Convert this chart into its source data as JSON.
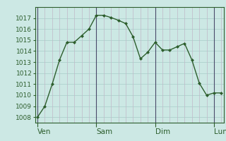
{
  "background_color": "#cce8e4",
  "plot_bg_color": "#cce8e4",
  "line_color": "#2d5e2d",
  "marker_color": "#2d5e2d",
  "vgrid_minor_color": "#c0b8c8",
  "hgrid_color": "#a8ccc8",
  "day_vline_color": "#4a4a6a",
  "ylim": [
    1007.5,
    1018.0
  ],
  "xlim": [
    -1,
    76
  ],
  "yticks": [
    1008,
    1009,
    1010,
    1011,
    1012,
    1013,
    1014,
    1015,
    1016,
    1017
  ],
  "day_labels": [
    "Ven",
    "Sam",
    "Dim",
    "Lun"
  ],
  "day_positions": [
    0,
    24,
    48,
    72
  ],
  "x_values": [
    0,
    3,
    6,
    9,
    12,
    15,
    18,
    21,
    24,
    27,
    30,
    33,
    36,
    39,
    42,
    45,
    48,
    51,
    54,
    57,
    60,
    63,
    66,
    69,
    72,
    75
  ],
  "y_values": [
    1008.0,
    1009.0,
    1011.0,
    1013.2,
    1014.8,
    1014.8,
    1015.4,
    1016.0,
    1017.25,
    1017.25,
    1017.05,
    1016.8,
    1016.5,
    1015.3,
    1013.3,
    1013.9,
    1014.8,
    1014.1,
    1014.1,
    1014.4,
    1014.7,
    1013.2,
    1011.1,
    1010.0,
    1010.2,
    1010.2
  ],
  "tick_fontsize": 6.5,
  "xlabel_fontsize": 7.5
}
